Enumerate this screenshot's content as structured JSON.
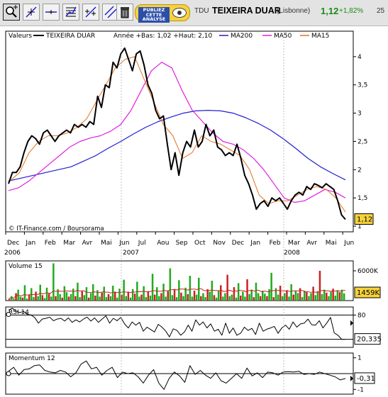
{
  "toolbar": {
    "buttons": [
      {
        "name": "zoom-tool-button",
        "icon": "magnifier-icon"
      },
      {
        "name": "crosshair-tool-button",
        "icon": "crosshair-icon"
      },
      {
        "name": "horizontal-line-tool-button",
        "icon": "horizontal-line-icon"
      },
      {
        "name": "indicator-tool-button",
        "icon": "chart-indicator-icon"
      },
      {
        "name": "trendline-tool-button",
        "icon": "trendline-icon"
      },
      {
        "name": "parallel-lines-tool-button",
        "icon": "parallel-lines-icon"
      },
      {
        "name": "delete-tool-button",
        "icon": "trash-icon"
      }
    ],
    "ad_text": "PUBLIEZ CETTE ANALYSE",
    "symbol": "TDU",
    "stock_name": "TEIXEIRA DUAR",
    "exchange": "(Lisbonne)",
    "price": "1,12",
    "change": "+1,82%",
    "extra": "25",
    "colors": {
      "positive": "#1a8a1a"
    }
  },
  "chart_data": [
    {
      "type": "line",
      "legend": [
        "Valeurs",
        "TEIXEIRA DUAR",
        "Année +Bas: 1,02 +Haut: 2,10",
        "MA200",
        "MA50",
        "MA15"
      ],
      "series": [
        {
          "name": "TEIXEIRA DUAR",
          "color": "#000000",
          "values": [
            1.75,
            1.95,
            1.95,
            2.05,
            2.3,
            2.5,
            2.6,
            2.55,
            2.45,
            2.65,
            2.7,
            2.6,
            2.5,
            2.6,
            2.65,
            2.7,
            2.65,
            2.8,
            2.75,
            2.8,
            2.75,
            2.85,
            2.8,
            3.3,
            3.1,
            3.5,
            3.45,
            3.9,
            3.8,
            4.05,
            4.15,
            3.95,
            3.75,
            4.05,
            4.1,
            3.85,
            3.5,
            3.35,
            3.05,
            2.9,
            2.95,
            2.45,
            2.0,
            2.3,
            1.9,
            2.3,
            2.5,
            2.4,
            2.7,
            2.4,
            2.5,
            2.8,
            2.6,
            2.7,
            2.4,
            2.35,
            2.25,
            2.3,
            2.25,
            2.45,
            2.2,
            1.9,
            1.75,
            1.55,
            1.3,
            1.4,
            1.45,
            1.35,
            1.5,
            1.45,
            1.5,
            1.4,
            1.3,
            1.45,
            1.55,
            1.6,
            1.55,
            1.7,
            1.65,
            1.75,
            1.72,
            1.68,
            1.75,
            1.7,
            1.65,
            1.45,
            1.2,
            1.12
          ]
        },
        {
          "name": "MA200",
          "color": "#1f1fd2",
          "values": [
            1.8,
            1.85,
            1.9,
            1.95,
            2.0,
            2.05,
            2.15,
            2.25,
            2.38,
            2.5,
            2.63,
            2.75,
            2.85,
            2.93,
            3.0,
            3.04,
            3.05,
            3.04,
            3.0,
            2.92,
            2.82,
            2.7,
            2.55,
            2.38,
            2.2,
            2.05,
            1.93,
            1.82
          ]
        },
        {
          "name": "MA50",
          "color": "#e020e0",
          "values": [
            1.63,
            1.68,
            1.8,
            1.95,
            2.1,
            2.25,
            2.4,
            2.5,
            2.56,
            2.6,
            2.68,
            2.8,
            3.05,
            3.4,
            3.75,
            3.9,
            3.8,
            3.4,
            3.05,
            2.85,
            2.65,
            2.5,
            2.45,
            2.35,
            2.2,
            2.0,
            1.75,
            1.5,
            1.42,
            1.45,
            1.55,
            1.65,
            1.6,
            1.5
          ]
        },
        {
          "name": "MA15",
          "color": "#e87020",
          "values": [
            1.8,
            1.95,
            2.3,
            2.5,
            2.6,
            2.6,
            2.65,
            2.75,
            2.9,
            3.2,
            3.5,
            3.8,
            3.95,
            4.0,
            3.6,
            3.2,
            2.8,
            2.6,
            2.2,
            2.3,
            2.6,
            2.5,
            2.45,
            2.35,
            2.25,
            2.0,
            1.55,
            1.4,
            1.45,
            1.45,
            1.55,
            1.65,
            1.7,
            1.65,
            1.5,
            1.25
          ]
        }
      ],
      "x_labels": [
        "Dec",
        "Jan",
        "Feb",
        "Mar",
        "Avr",
        "Mai",
        "Jun",
        "Jul",
        "Aou",
        "Sep",
        "Oct",
        "Nov",
        "Dec",
        "Jan",
        "Feb",
        "Mar",
        "Avr",
        "Mai",
        "Jun"
      ],
      "years": [
        "2006",
        "2007",
        "2008"
      ],
      "y_ticks": [
        1,
        1.5,
        2,
        2.5,
        3,
        3.5,
        4
      ],
      "y_labels": [
        "1",
        "1,5",
        "2",
        "2,5",
        "3",
        "3,5",
        "4"
      ],
      "ylim": [
        0.9,
        4.45
      ],
      "last_value_label": "1,12",
      "copyright": "© IT-Finance.com / Boursorama"
    },
    {
      "type": "bar",
      "title": "Volume 15",
      "ylim": [
        0,
        8000
      ],
      "y_labels": [
        "6000K"
      ],
      "last_value_label": "1459K",
      "values": [
        300,
        900,
        400,
        1500,
        2200,
        800,
        600,
        3100,
        400,
        1200,
        2500,
        700,
        1800,
        900,
        3200,
        1100,
        500,
        2600,
        1400,
        800,
        7500,
        900,
        2300,
        1300,
        600,
        2900,
        1700,
        800,
        1300,
        2400,
        900,
        3600,
        700,
        1900,
        1100,
        2700,
        600,
        1500,
        3300,
        1000,
        2100,
        800,
        1600,
        2800,
        700,
        1300,
        900,
        3000,
        1800,
        600,
        2400,
        1200,
        4200,
        900,
        1700,
        600,
        2300,
        1400,
        3800,
        800,
        1200,
        2900,
        700,
        1900,
        1000,
        5400,
        1200,
        2700,
        900,
        1500,
        3400,
        800,
        1900,
        6500,
        1100,
        2200,
        700,
        4100,
        1600,
        900,
        2600,
        1300,
        5000,
        800,
        2000,
        1200,
        4600,
        900,
        1500,
        700,
        2300,
        1800,
        4000,
        1100,
        600,
        2000,
        3100,
        800,
        1500,
        5200,
        900,
        1200,
        2700,
        600,
        3500,
        1000,
        1800,
        800,
        4300,
        1300,
        2200,
        700,
        3600,
        1500,
        900,
        2000,
        1400,
        900,
        2300,
        5600,
        700,
        2500,
        1200,
        3000,
        900,
        1500,
        2100,
        800,
        3300,
        1200,
        2000,
        1500,
        2500,
        700,
        2000,
        1700,
        900,
        1500,
        2800,
        1100,
        1900,
        6000,
        1300,
        2200,
        1600,
        900,
        1800,
        2400,
        1000,
        2100,
        1700,
        2200,
        1459
      ]
    },
    {
      "type": "line",
      "title": "RSI 14",
      "ylim": [
        0,
        100
      ],
      "levels": [
        20,
        80
      ],
      "y_labels": [
        "80"
      ],
      "last_value_label": "20,335",
      "values": [
        92,
        97,
        90,
        86,
        89,
        82,
        80,
        74,
        60,
        70,
        72,
        75,
        66,
        70,
        72,
        65,
        73,
        62,
        68,
        63,
        70,
        75,
        65,
        73,
        62,
        70,
        78,
        60,
        72,
        66,
        74,
        58,
        48,
        63,
        55,
        62,
        40,
        50,
        44,
        38,
        57,
        50,
        40,
        26,
        46,
        42,
        30,
        38,
        55,
        40,
        68,
        55,
        63,
        48,
        58,
        40,
        45,
        30,
        60,
        35,
        48,
        30,
        35,
        50,
        42,
        47,
        32,
        60,
        40,
        45,
        48,
        52,
        35,
        48,
        55,
        45,
        63,
        50,
        58,
        60,
        70,
        56,
        55,
        66,
        48,
        60,
        74,
        36,
        30,
        20,
        20
      ]
    },
    {
      "type": "line",
      "title": "Momentum 12",
      "ylim": [
        -1.3,
        1.3
      ],
      "y_labels": [
        "1",
        "-1"
      ],
      "last_value_label": "-0,31",
      "values": [
        0.15,
        0.4,
        -0.1,
        0.25,
        0.3,
        0.5,
        0.55,
        0.2,
        0.1,
        0.05,
        0.2,
        0.1,
        -0.2,
        0.05,
        0.6,
        0.8,
        0.3,
        0.4,
        -0.1,
        0.2,
        0.4,
        -0.25,
        0.1,
        0.0,
        0.05,
        -0.2,
        -0.6,
        -0.1,
        0.25,
        -0.6,
        -1.0,
        -0.3,
        0.1,
        -0.15,
        -0.55,
        0.5,
        -0.05,
        0.2,
        -0.1,
        -0.3,
        0.05,
        -0.45,
        -0.6,
        -0.3,
        0.0,
        -0.3,
        0.35,
        -0.15,
        0.05,
        -0.25,
        0.1,
        0.05,
        -0.1,
        0.1,
        0.12,
        0.1,
        0.15,
        -0.05,
        0.0,
        -0.05,
        0.1,
        0.0,
        -0.1,
        -0.2,
        -0.4,
        -0.31
      ]
    }
  ]
}
